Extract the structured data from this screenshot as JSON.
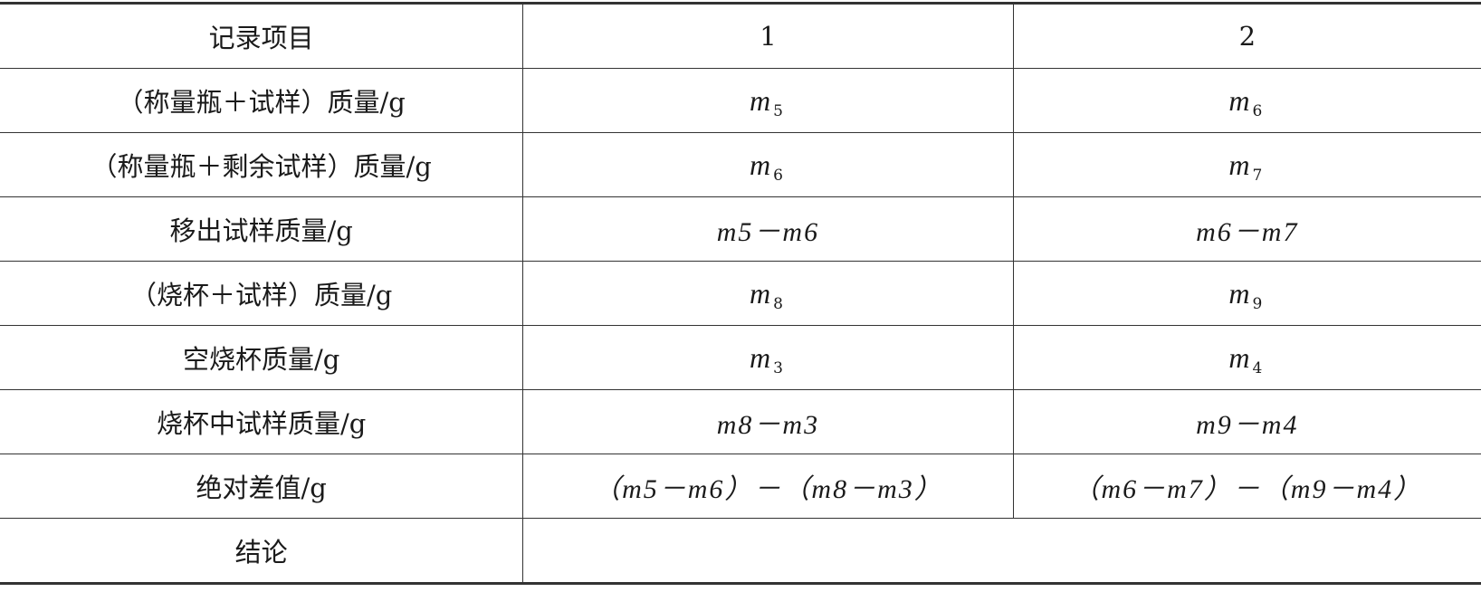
{
  "header": {
    "label": "记录项目",
    "col1": "1",
    "col2": "2"
  },
  "rows": [
    {
      "label": "（称量瓶＋试样）质量/g",
      "c1": "m5",
      "c2": "m6"
    },
    {
      "label": "（称量瓶＋剩余试样）质量/g",
      "c1": "m6",
      "c2": "m7"
    },
    {
      "label": "移出试样质量/g",
      "c1": "m5－m6",
      "c2": "m6－m7"
    },
    {
      "label": "（烧杯＋试样）质量/g",
      "c1": "m8",
      "c2": "m9"
    },
    {
      "label": "空烧杯质量/g",
      "c1": "m3",
      "c2": "m4"
    },
    {
      "label": "烧杯中试样质量/g",
      "c1": "m8－m3",
      "c2": "m9－m4"
    },
    {
      "label": "绝对差值/g",
      "c1": "（m5－m6）－（m8－m3）",
      "c2": "（m6－m7）－（m9－m4）"
    }
  ],
  "conclusion": {
    "label": "结论",
    "value": ""
  }
}
